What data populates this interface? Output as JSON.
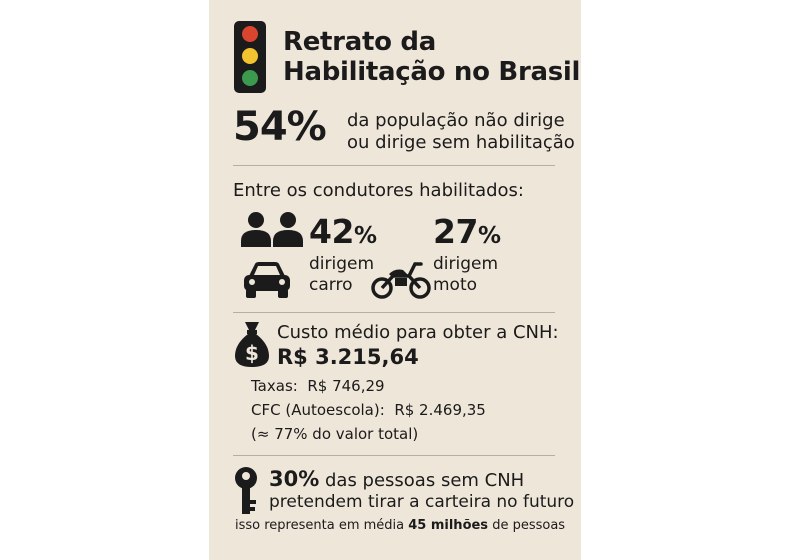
{
  "header": {
    "title_line1": "Retrato da",
    "title_line2": "Habilitação no Brasil",
    "icon": "traffic-light-icon"
  },
  "stat_population": {
    "value": "54%",
    "line1": "da população não dirige",
    "line2": "ou dirige sem habilitação"
  },
  "licensed": {
    "heading": "Entre os condutores habilitados:",
    "car": {
      "value": "42",
      "unit": "%",
      "line1": "dirigem",
      "line2": "carro",
      "icon": "car-icon"
    },
    "moto": {
      "value": "27",
      "unit": "%",
      "line1": "dirigem",
      "line2": "moto",
      "icon": "motorcycle-icon"
    },
    "people_icon": "people-icon"
  },
  "cost": {
    "heading": "Custo médio para obter a CNH:",
    "total": "R$ 3.215,64",
    "fees_label": "Taxas:",
    "fees_value": "R$ 746,29",
    "cfc_label": "CFC (Autoescola):",
    "cfc_value": "R$ 2.469,35",
    "note": "(≈ 77% do valor total)",
    "icon": "money-bag-icon"
  },
  "future": {
    "value": "30%",
    "line1": " das pessoas sem CNH",
    "line2": "pretendem tirar a carteira no futuro",
    "footer_pre": "isso representa em média ",
    "footer_bold": "45 milhões",
    "footer_post": " de pessoas",
    "icon": "key-icon"
  },
  "colors": {
    "background": "#efe6da",
    "red_light": "#d9452f",
    "yellow_light": "#f2c230",
    "green_light": "#3c9a4e",
    "text": "#1b1b1b"
  }
}
